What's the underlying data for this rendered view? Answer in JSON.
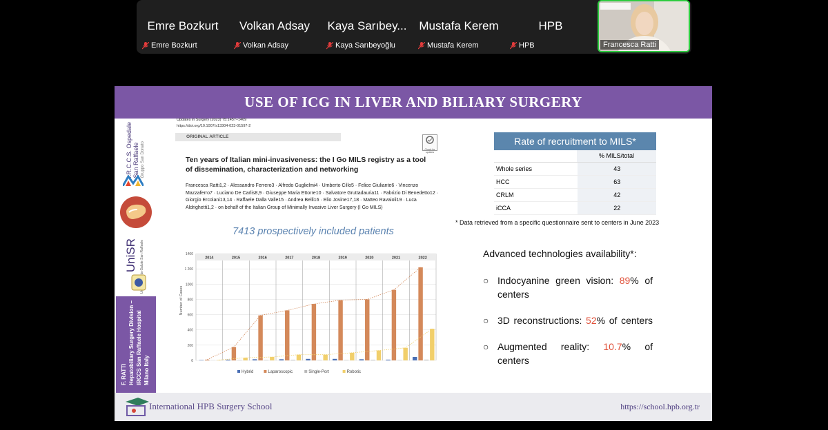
{
  "participants": [
    {
      "display": "Emre Bozkurt",
      "name": "Emre Bozkurt"
    },
    {
      "display": "Volkan Adsay",
      "name": "Volkan Adsay"
    },
    {
      "display": "Kaya Sarıbey...",
      "name": "Kaya Sarıbeyoğlu"
    },
    {
      "display": "Mustafa Kerem",
      "name": "Mustafa Kerem"
    },
    {
      "display": "HPB",
      "name": "HPB"
    }
  ],
  "speaker": {
    "name": "Francesca Ratti"
  },
  "slide": {
    "title": "USE OF ICG IN LIVER AND BILIARY SURGERY",
    "left": {
      "hospital_lines": [
        "I.R.C.C.S. Ospedale",
        "San Raffaele",
        "Gruppo San Donato"
      ],
      "unisr": "UniSR",
      "unisr_sub": "Università Vita-Salute San Raffaele",
      "author": "F. RATTI",
      "affil_lines": [
        "Hepatobiliary Surgery Division –",
        "IRCCS San Raffaele Hospital",
        "Milano Italy"
      ]
    },
    "paper": {
      "journal": "Updates in Surgery (2023) 75:1457–1469",
      "doi": "https://doi.org/10.1007/s13304-023-01597-2",
      "article_type": "ORIGINAL ARTICLE",
      "check": "Check for updates",
      "title": "Ten years of Italian mini-invasiveness: the I Go MILS registry as a tool of dissemination, characterization and networking",
      "authors": "Francesca Ratti1,2 · Alessandro Ferrero3 · Alfredo Guglielmi4 · Umberto Cillo5 · Felice Giuliante6 · Vincenzo Mazzaferro7 · Luciano De Carlis8,9 · Giuseppe Maria Ettorre10 · Salvatore Gruttadauria11 · Fabrizio Di Benedetto12 · Giorgio Ercolani13,14 · Raffaele Dalla Valle15 · Andrea Belli16 · Elio Jovine17,18 · Matteo Ravaioli19 · Luca Aldrighetti1,2 · on behalf of the Italian Group of Minimally Invasive Liver Surgery (I Go MILS)",
      "highlight": "7413 prospectively included patients"
    },
    "stats_table": {
      "title": "Rate of recruitment to MILS*",
      "header": [
        "",
        "% MILS/total"
      ],
      "rows": [
        {
          "label": "Whole series",
          "value": "43"
        },
        {
          "label": "HCC",
          "value": "63"
        },
        {
          "label": "CRLM",
          "value": "42"
        },
        {
          "label": "iCCA",
          "value": "22"
        }
      ]
    },
    "footnote": "* Data retrieved from a specific questionnaire sent to centers in June 2023",
    "tech": {
      "heading": "Advanced technologies availability*:",
      "items": [
        {
          "pre": "Indocyanine green vision: ",
          "pct": "89",
          "post": "% of centers"
        },
        {
          "pre": "3D reconstructions: ",
          "pct": "52",
          "post": "% of centers"
        },
        {
          "pre": "Augmented reality: ",
          "pct": "10.7",
          "post": "% of centers"
        }
      ]
    },
    "footer": {
      "school": "International HPB Surgery School",
      "url": "https://school.hpb.org.tr"
    }
  },
  "colors": {
    "purple": "#7b57a5",
    "laparoscopic": "#d4895a",
    "robotic": "#f1cf6b",
    "hybrid": "#4a6fb5",
    "singleport": "#b9b9b9",
    "red": "#e0523b",
    "tablehead": "#5b86ad"
  },
  "chart_data": {
    "type": "bar",
    "categories": [
      "2014",
      "2015",
      "2016",
      "2017",
      "2018",
      "2019",
      "2020",
      "2021",
      "2022"
    ],
    "ylabel": "Number of Cases",
    "ylim": [
      0,
      1400
    ],
    "yticks": [
      "0",
      "200",
      "400",
      "600",
      "800",
      "1000",
      "1 200",
      "1400"
    ],
    "series": [
      {
        "name": "Hybrid",
        "values": [
          5,
          10,
          15,
          15,
          20,
          20,
          15,
          10,
          45
        ]
      },
      {
        "name": "Laparoscopic",
        "values": [
          10,
          175,
          590,
          655,
          740,
          790,
          800,
          925,
          1220
        ]
      },
      {
        "name": "Single-Port",
        "values": [
          2,
          5,
          5,
          8,
          5,
          5,
          8,
          5,
          10
        ]
      },
      {
        "name": "Robotic",
        "values": [
          5,
          35,
          45,
          75,
          75,
          100,
          130,
          165,
          415
        ]
      }
    ]
  }
}
